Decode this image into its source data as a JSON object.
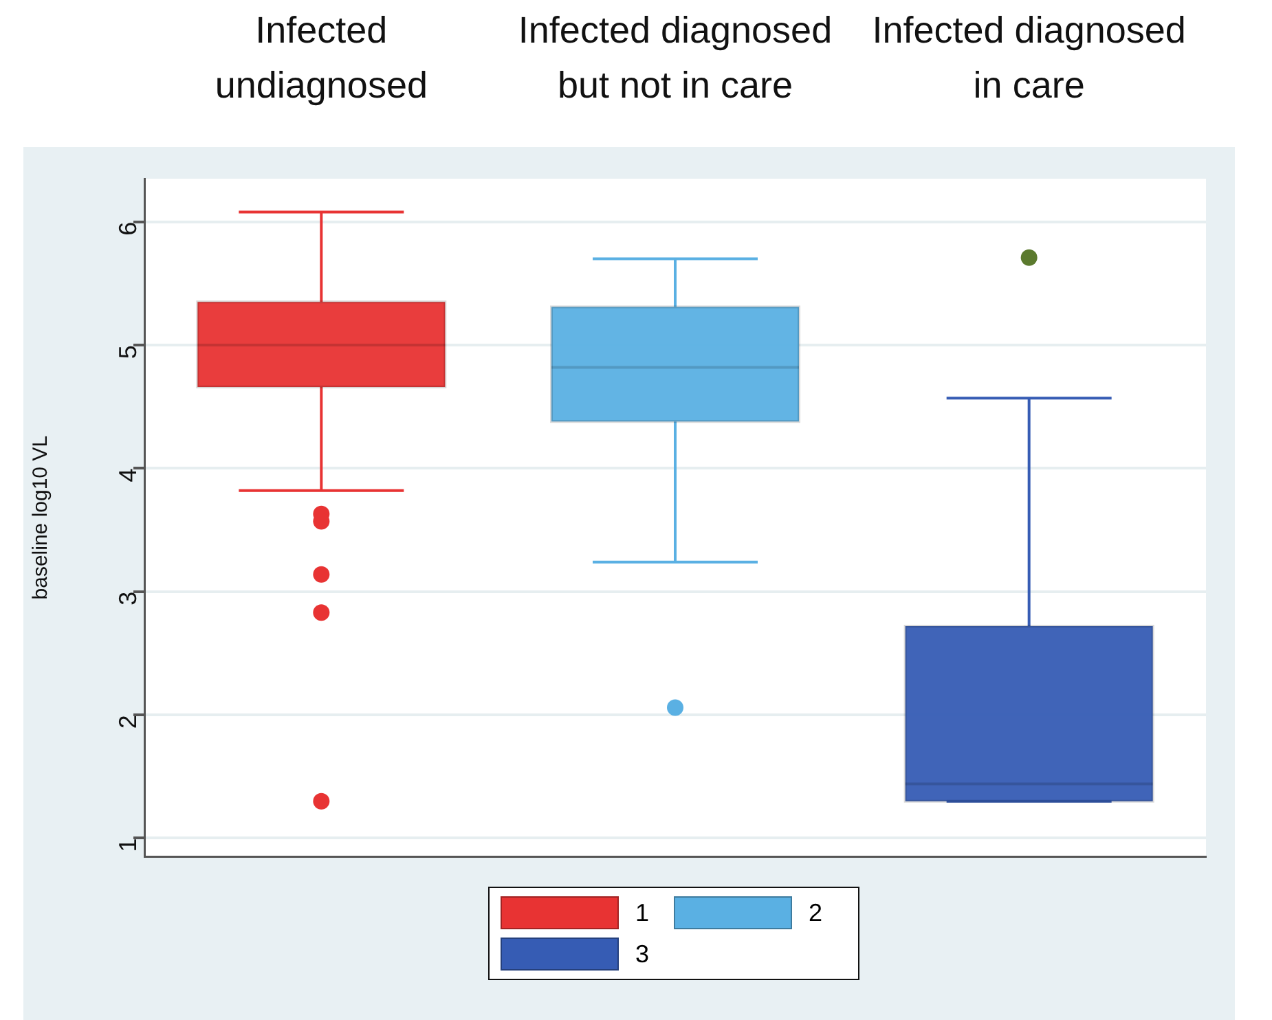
{
  "chart_data": {
    "type": "box",
    "ylabel": "baseline log10 VL",
    "categories": [
      "Infected undiagnosed",
      "Infected diagnosed but not in care",
      "Infected diagnosed in care"
    ],
    "series": [
      {
        "name": "1",
        "color": "#e83333",
        "boxes": [
          {
            "low": 3.82,
            "q1": 4.66,
            "median": 5.0,
            "q3": 5.35,
            "high": 6.08,
            "outliers": [
              3.63,
              3.57,
              3.14,
              2.83,
              1.3
            ]
          },
          null,
          null
        ]
      },
      {
        "name": "2",
        "color": "#5ab0e3",
        "boxes": [
          null,
          {
            "low": 3.24,
            "q1": 4.38,
            "median": 4.82,
            "q3": 5.31,
            "high": 5.7,
            "outliers": [
              2.06
            ]
          },
          null
        ]
      },
      {
        "name": "3",
        "color": "#365cb4",
        "boxes": [
          null,
          null,
          {
            "low": 1.3,
            "q1": 1.3,
            "median": 1.44,
            "q3": 2.72,
            "high": 4.57
          }
        ]
      },
      {
        "type": "scatter",
        "color": "#5b7a2e",
        "x": [
          "Infected diagnosed in care"
        ],
        "values": [
          5.71
        ]
      }
    ],
    "ylim": [
      0.85,
      6.35
    ],
    "yticks": [
      1,
      2,
      3,
      4,
      5,
      6
    ],
    "grid": "y",
    "legend": "bottom",
    "marker": "circle"
  }
}
